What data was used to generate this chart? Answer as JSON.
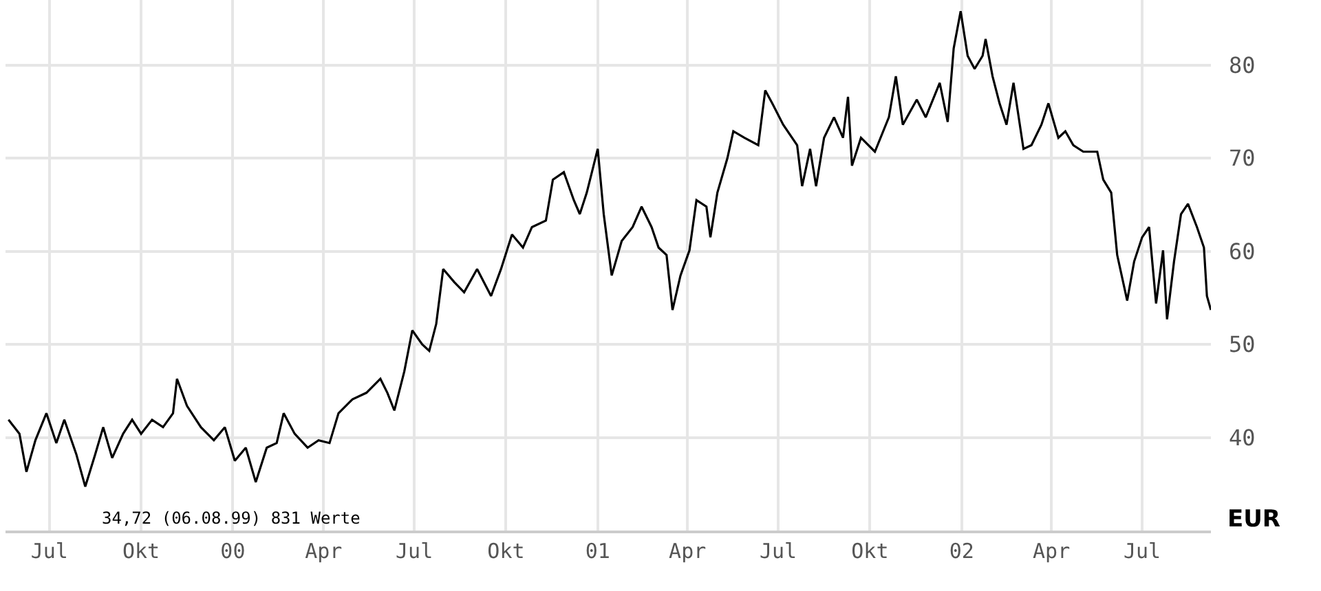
{
  "chart_data": {
    "type": "line",
    "ylabel": "EUR",
    "xlim": [
      "1999-05-18",
      "2002-09-08"
    ],
    "ylim": [
      30,
      87
    ],
    "yticks": [
      40,
      50,
      60,
      70,
      80
    ],
    "xticks": [
      {
        "value": "1999-07-01",
        "label": "Jul"
      },
      {
        "value": "1999-10-01",
        "label": "Okt"
      },
      {
        "value": "2000-01-01",
        "label": "00"
      },
      {
        "value": "2000-04-01",
        "label": "Apr"
      },
      {
        "value": "2000-07-01",
        "label": "Jul"
      },
      {
        "value": "2000-10-01",
        "label": "Okt"
      },
      {
        "value": "2001-01-01",
        "label": "01"
      },
      {
        "value": "2001-04-01",
        "label": "Apr"
      },
      {
        "value": "2001-07-01",
        "label": "Jul"
      },
      {
        "value": "2001-10-01",
        "label": "Okt"
      },
      {
        "value": "2002-01-01",
        "label": "02"
      },
      {
        "value": "2002-04-01",
        "label": "Apr"
      },
      {
        "value": "2002-07-01",
        "label": "Jul"
      }
    ],
    "grid": true,
    "marker": "none",
    "line_style": "solid",
    "annotations": [
      {
        "text": "34,72 (06.08.99) 831 Werte",
        "x": "1999-08-06",
        "y": 34.72
      }
    ],
    "series": [
      {
        "color": "#000000",
        "x": [
          "1999-05-21",
          "1999-06-01",
          "1999-06-08",
          "1999-06-17",
          "1999-06-28",
          "1999-07-08",
          "1999-07-16",
          "1999-07-28",
          "1999-08-06",
          "1999-08-16",
          "1999-08-24",
          "1999-09-02",
          "1999-09-13",
          "1999-09-22",
          "1999-10-01",
          "1999-10-12",
          "1999-10-23",
          "1999-11-02",
          "1999-11-06",
          "1999-11-16",
          "1999-11-30",
          "1999-12-13",
          "1999-12-24",
          "2000-01-03",
          "2000-01-14",
          "2000-01-24",
          "2000-02-04",
          "2000-02-14",
          "2000-02-21",
          "2000-03-03",
          "2000-03-16",
          "2000-03-27",
          "2000-04-07",
          "2000-04-16",
          "2000-04-30",
          "2000-05-14",
          "2000-05-28",
          "2000-06-04",
          "2000-06-11",
          "2000-06-21",
          "2000-06-29",
          "2000-07-09",
          "2000-07-16",
          "2000-07-23",
          "2000-07-30",
          "2000-08-10",
          "2000-08-20",
          "2000-09-02",
          "2000-09-16",
          "2000-09-26",
          "2000-10-07",
          "2000-10-18",
          "2000-10-27",
          "2000-11-10",
          "2000-11-17",
          "2000-11-28",
          "2000-12-08",
          "2000-12-14",
          "2000-12-21",
          "2001-01-01",
          "2001-01-07",
          "2001-01-15",
          "2001-01-25",
          "2001-02-05",
          "2001-02-14",
          "2001-02-24",
          "2001-03-03",
          "2001-03-11",
          "2001-03-17",
          "2001-03-25",
          "2001-04-03",
          "2001-04-10",
          "2001-04-20",
          "2001-04-24",
          "2001-05-01",
          "2001-05-11",
          "2001-05-17",
          "2001-05-28",
          "2001-06-11",
          "2001-06-18",
          "2001-06-25",
          "2001-07-06",
          "2001-07-20",
          "2001-07-25",
          "2001-08-02",
          "2001-08-08",
          "2001-08-16",
          "2001-08-26",
          "2001-09-04",
          "2001-09-09",
          "2001-09-13",
          "2001-09-22",
          "2001-10-06",
          "2001-10-20",
          "2001-10-27",
          "2001-11-03",
          "2001-11-17",
          "2001-11-26",
          "2001-12-10",
          "2001-12-18",
          "2001-12-24",
          "2001-12-31",
          "2002-01-07",
          "2002-01-14",
          "2002-01-22",
          "2002-01-25",
          "2002-02-01",
          "2002-02-08",
          "2002-02-15",
          "2002-02-22",
          "2002-03-04",
          "2002-03-12",
          "2002-03-22",
          "2002-03-29",
          "2002-04-08",
          "2002-04-15",
          "2002-04-23",
          "2002-05-03",
          "2002-05-17",
          "2002-05-23",
          "2002-05-31",
          "2002-06-06",
          "2002-06-16",
          "2002-06-23",
          "2002-07-01",
          "2002-07-08",
          "2002-07-15",
          "2002-07-22",
          "2002-07-26",
          "2002-08-02",
          "2002-08-09",
          "2002-08-16",
          "2002-08-25",
          "2002-09-01",
          "2002-09-04",
          "2002-09-08"
        ],
        "values": [
          41.9,
          40.4,
          36.3,
          39.7,
          42.6,
          39.4,
          41.9,
          38.2,
          34.72,
          38.2,
          41.1,
          37.8,
          40.4,
          41.9,
          40.4,
          41.9,
          41.1,
          42.6,
          46.3,
          43.4,
          41.1,
          39.7,
          41.1,
          37.5,
          38.9,
          35.2,
          38.9,
          39.4,
          42.6,
          40.4,
          38.9,
          39.7,
          39.4,
          42.6,
          44.1,
          44.8,
          46.3,
          44.8,
          42.9,
          47.1,
          51.5,
          50.0,
          49.3,
          52.2,
          58.1,
          56.7,
          55.6,
          58.1,
          55.2,
          58.1,
          61.8,
          60.4,
          62.6,
          63.3,
          67.7,
          68.5,
          65.5,
          64.0,
          66.3,
          71.0,
          64.0,
          57.4,
          61.1,
          62.6,
          64.8,
          62.6,
          60.4,
          59.6,
          53.7,
          57.4,
          60.1,
          65.5,
          64.8,
          61.5,
          66.3,
          70.0,
          72.9,
          72.2,
          71.4,
          77.3,
          75.9,
          73.6,
          71.4,
          67.0,
          71.0,
          67.0,
          72.2,
          74.4,
          72.2,
          76.6,
          69.2,
          72.2,
          70.7,
          74.4,
          78.8,
          73.6,
          76.3,
          74.4,
          78.1,
          73.9,
          81.8,
          85.8,
          81.0,
          79.6,
          81.0,
          82.8,
          78.8,
          75.9,
          73.6,
          78.1,
          71.0,
          71.4,
          73.6,
          75.9,
          72.2,
          72.9,
          71.4,
          70.7,
          70.7,
          67.7,
          66.3,
          59.6,
          54.7,
          58.9,
          61.5,
          62.6,
          54.4,
          60.1,
          52.7,
          58.9,
          64.0,
          65.1,
          62.6,
          60.4,
          55.2,
          53.7
        ]
      }
    ]
  }
}
